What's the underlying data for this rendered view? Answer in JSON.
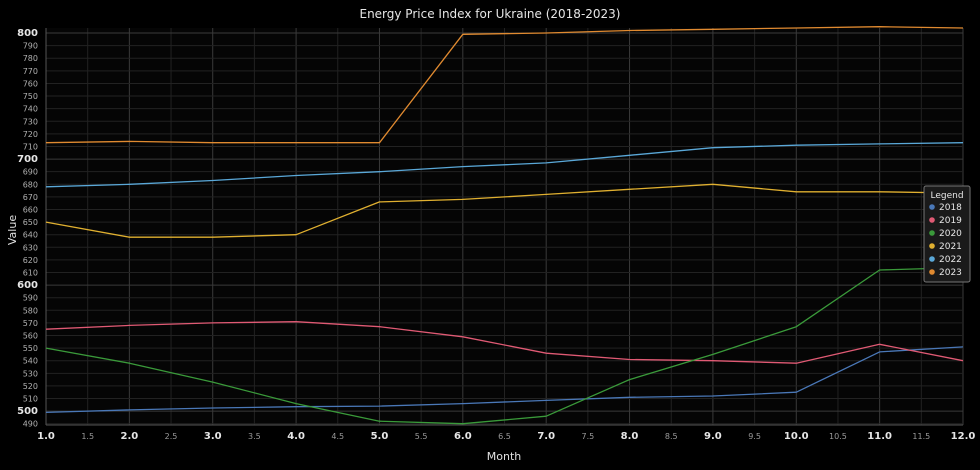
{
  "chart_data": {
    "type": "line",
    "title": "Energy Price Index for Ukraine (2018-2023)",
    "xlabel": "Month",
    "ylabel": "Value",
    "xlim": [
      1.0,
      12.0
    ],
    "ylim": [
      489,
      804
    ],
    "x_ticks": [
      1.0,
      1.5,
      2.0,
      2.5,
      3.0,
      3.5,
      4.0,
      4.5,
      5.0,
      5.5,
      6.0,
      6.5,
      7.0,
      7.5,
      8.0,
      8.5,
      9.0,
      9.5,
      10.0,
      10.5,
      11.0,
      11.5,
      12.0
    ],
    "x_tick_labels": [
      "1.0",
      "1.5",
      "2.0",
      "2.5",
      "3.0",
      "3.5",
      "4.0",
      "4.5",
      "5.0",
      "5.5",
      "6.0",
      "6.5",
      "7.0",
      "7.5",
      "8.0",
      "8.5",
      "9.0",
      "9.5",
      "10.0",
      "10.5",
      "11.0",
      "11.5",
      "12.0"
    ],
    "y_ticks": [
      490,
      500,
      510,
      520,
      530,
      540,
      550,
      560,
      570,
      580,
      590,
      600,
      610,
      620,
      630,
      640,
      650,
      660,
      670,
      680,
      690,
      700,
      710,
      720,
      730,
      740,
      750,
      760,
      770,
      780,
      790,
      800
    ],
    "y_tick_labels": [
      "490",
      "500",
      "510",
      "520",
      "530",
      "540",
      "550",
      "560",
      "570",
      "580",
      "590",
      "600",
      "610",
      "620",
      "630",
      "640",
      "650",
      "660",
      "670",
      "680",
      "690",
      "700",
      "710",
      "720",
      "730",
      "740",
      "750",
      "760",
      "770",
      "780",
      "790",
      "800"
    ],
    "major_x_ticks": [
      "1.0",
      "2.0",
      "3.0",
      "4.0",
      "5.0",
      "6.0",
      "7.0",
      "8.0",
      "9.0",
      "10.0",
      "11.0",
      "12.0"
    ],
    "major_y_ticks": [
      "500",
      "600",
      "700",
      "800"
    ],
    "grid": true,
    "legend_title": "Legend",
    "legend_position": "right",
    "x": [
      1,
      2,
      3,
      4,
      5,
      6,
      7,
      8,
      9,
      10,
      11,
      12
    ],
    "series": [
      {
        "name": "2018",
        "color": "#4a78b8",
        "values": [
          499,
          501,
          502.5,
          503.5,
          504,
          506,
          508.5,
          511,
          512,
          515,
          547,
          551
        ]
      },
      {
        "name": "2019",
        "color": "#e05a74",
        "values": [
          565,
          568,
          570,
          571,
          567,
          559,
          546,
          541,
          540,
          538,
          553,
          540
        ]
      },
      {
        "name": "2020",
        "color": "#3a9a3a",
        "values": [
          550,
          538,
          523,
          506,
          492,
          490,
          496,
          525,
          545,
          567,
          612,
          614
        ]
      },
      {
        "name": "2021",
        "color": "#e0b030",
        "values": [
          650,
          638,
          638,
          640,
          666,
          668,
          672,
          676,
          680,
          674,
          674,
          673
        ]
      },
      {
        "name": "2022",
        "color": "#5aa8d8",
        "values": [
          678,
          680,
          683,
          687,
          690,
          694,
          697,
          703,
          709,
          711,
          712,
          713
        ]
      },
      {
        "name": "2023",
        "color": "#e08a30",
        "values": [
          713,
          714,
          713,
          713,
          713,
          799,
          800,
          802,
          803,
          804,
          805,
          804
        ]
      }
    ]
  }
}
